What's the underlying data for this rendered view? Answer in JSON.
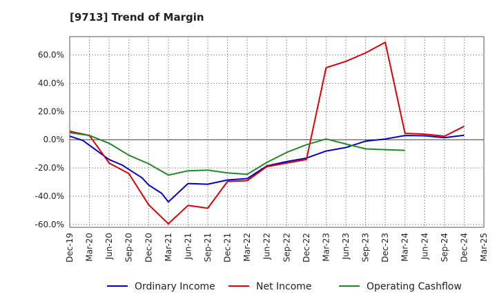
{
  "chart_data": {
    "type": "line",
    "title": "[9713]  Trend of Margin",
    "xlabel": "",
    "ylabel": "",
    "ylim": [
      -62,
      73
    ],
    "y_ticks": [
      60,
      40,
      20,
      0,
      -20,
      -40,
      -60
    ],
    "y_tick_labels": [
      "60.0%",
      "40.0%",
      "20.0%",
      "0.0%",
      "-20.0%",
      "-40.0%",
      "-60.0%"
    ],
    "categories": [
      "Dec-19",
      "Mar-20",
      "Jun-20",
      "Sep-20",
      "Dec-20",
      "Mar-21",
      "Jun-21",
      "Sep-21",
      "Dec-21",
      "Mar-22",
      "Jun-22",
      "Sep-22",
      "Dec-22",
      "Mar-23",
      "Jun-23",
      "Sep-23",
      "Dec-23",
      "Mar-24",
      "Jun-24",
      "Sep-24",
      "Dec-24",
      "Mar-25"
    ],
    "grid": true,
    "legend_position": "bottom",
    "series": [
      {
        "name": "Ordinary Income",
        "color": "#0000cc",
        "points": [
          [
            "Dec-19",
            2.5
          ],
          [
            "Feb-20",
            -0.5
          ],
          [
            "Jun-20",
            -14
          ],
          [
            "Aug-20",
            -18
          ],
          [
            "Sep-20",
            -21
          ],
          [
            "Nov-20",
            -27
          ],
          [
            "Dec-20",
            -32
          ],
          [
            "Feb-21",
            -38
          ],
          [
            "Mar-21",
            -44
          ],
          [
            "Jun-21",
            -31
          ],
          [
            "Sep-21",
            -31.5
          ],
          [
            "Dec-21",
            -28.5
          ],
          [
            "Mar-22",
            -27.5
          ],
          [
            "Jun-22",
            -18.5
          ],
          [
            "Sep-22",
            -15.5
          ],
          [
            "Dec-22",
            -13
          ],
          [
            "Mar-23",
            -8
          ],
          [
            "Jun-23",
            -5.5
          ],
          [
            "Sep-23",
            -1
          ],
          [
            "Dec-23",
            0.5
          ],
          [
            "Mar-24",
            3
          ],
          [
            "Jun-24",
            2.8
          ],
          [
            "Sep-24",
            1.5
          ],
          [
            "Dec-24",
            3.2
          ]
        ]
      },
      {
        "name": "Net Income",
        "color": "#dd0000",
        "points": [
          [
            "Dec-19",
            6
          ],
          [
            "Mar-20",
            3
          ],
          [
            "Jun-20",
            -16.5
          ],
          [
            "Sep-20",
            -24
          ],
          [
            "Dec-20",
            -46
          ],
          [
            "Mar-21",
            -59.5
          ],
          [
            "Jun-21",
            -46.5
          ],
          [
            "Sep-21",
            -48.5
          ],
          [
            "Dec-21",
            -29.5
          ],
          [
            "Mar-22",
            -29
          ],
          [
            "Jun-22",
            -19
          ],
          [
            "Sep-22",
            -16.5
          ],
          [
            "Dec-22",
            -14
          ],
          [
            "Mar-23",
            51
          ],
          [
            "Jun-23",
            55.5
          ],
          [
            "Sep-23",
            61.5
          ],
          [
            "Dec-23",
            69
          ],
          [
            "Mar-24",
            4.5
          ],
          [
            "Jun-24",
            4
          ],
          [
            "Sep-24",
            2.5
          ],
          [
            "Dec-24",
            9.5
          ]
        ]
      },
      {
        "name": "Operating Cashflow",
        "color": "#228822",
        "points": [
          [
            "Dec-19",
            5
          ],
          [
            "Mar-20",
            3
          ],
          [
            "Jun-20",
            -2.5
          ],
          [
            "Sep-20",
            -11
          ],
          [
            "Dec-20",
            -17
          ],
          [
            "Mar-21",
            -25
          ],
          [
            "Jun-21",
            -22
          ],
          [
            "Sep-21",
            -21.5
          ],
          [
            "Dec-21",
            -23.5
          ],
          [
            "Mar-22",
            -24.5
          ],
          [
            "Jun-22",
            -16
          ],
          [
            "Sep-22",
            -9
          ],
          [
            "Dec-22",
            -3.5
          ],
          [
            "Mar-23",
            0.5
          ],
          [
            "Jun-23",
            -3
          ],
          [
            "Sep-23",
            -6.5
          ],
          [
            "Dec-23",
            -7
          ],
          [
            "Mar-24",
            -7.5
          ]
        ]
      }
    ]
  }
}
